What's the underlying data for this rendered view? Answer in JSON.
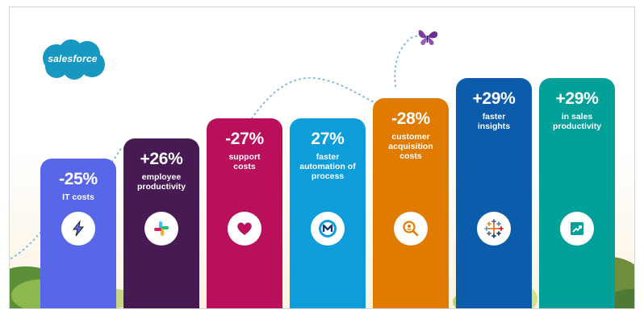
{
  "brand": {
    "logo_text": "salesforce"
  },
  "chart_data": {
    "type": "bar",
    "categories": [
      "IT costs",
      "employee productivity",
      "support costs",
      "faster automation of process",
      "customer acquisition costs",
      "faster insights",
      "in sales productivity"
    ],
    "values": [
      -25,
      26,
      -27,
      27,
      -28,
      29,
      29
    ],
    "value_labels": [
      "-25%",
      "+26%",
      "-27%",
      "27%",
      "-28%",
      "+29%",
      "+29%"
    ],
    "labels": [
      "IT costs",
      "employee\nproductivity",
      "support\ncosts",
      "faster\nautomation of\nprocess",
      "customer\nacquisition\ncosts",
      "faster\ninsights",
      "in sales\nproductivity"
    ],
    "colors": [
      "#5867e8",
      "#481a54",
      "#ba0f5a",
      "#0d9dda",
      "#e07b00",
      "#0b5cab",
      "#03a09a"
    ],
    "icons": [
      "lightning-icon",
      "slack-icon",
      "heart-icon",
      "mulesoft-icon",
      "search-person-icon",
      "tableau-icon",
      "chart-growth-icon"
    ],
    "title": "",
    "xlabel": "",
    "ylabel": ""
  }
}
